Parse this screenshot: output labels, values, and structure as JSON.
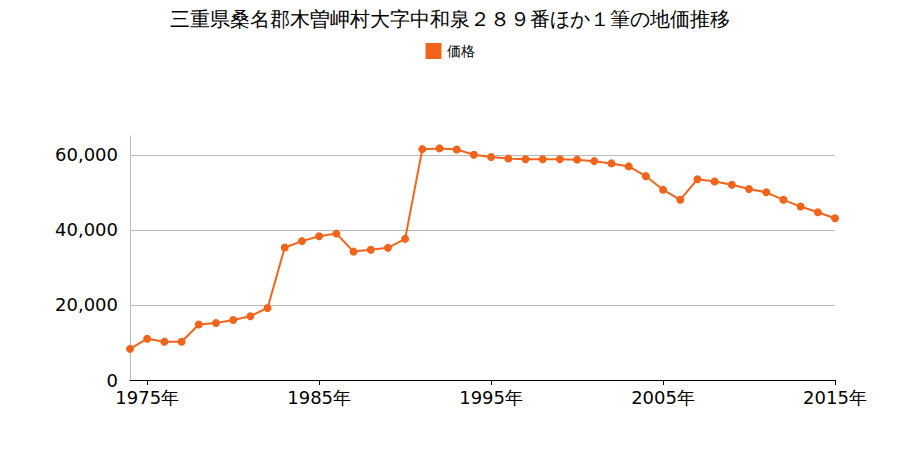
{
  "chart_data": {
    "type": "line",
    "title": "三重県桑名郡木曽岬村大字中和泉２８９番ほか１筆の地価推移",
    "x": [
      1974,
      1975,
      1976,
      1977,
      1978,
      1979,
      1980,
      1981,
      1982,
      1983,
      1984,
      1985,
      1986,
      1987,
      1988,
      1989,
      1990,
      1991,
      1992,
      1993,
      1994,
      1995,
      1996,
      1997,
      1998,
      1999,
      2000,
      2001,
      2002,
      2003,
      2004,
      2005,
      2006,
      2007,
      2008,
      2009,
      2010,
      2011,
      2012,
      2013,
      2014,
      2015
    ],
    "series": [
      {
        "name": "価格",
        "color": "#f2641c",
        "marker": "circle",
        "line_style": "solid",
        "values": [
          8300,
          11000,
          10200,
          10200,
          14800,
          15200,
          16000,
          17000,
          19200,
          35300,
          37000,
          38300,
          39000,
          34200,
          34700,
          35200,
          37600,
          61500,
          61700,
          61400,
          60000,
          59400,
          59000,
          58800,
          58800,
          58800,
          58700,
          58300,
          57700,
          56900,
          54300,
          50700,
          48000,
          53500,
          52900,
          52000,
          50900,
          50000,
          48000,
          46200,
          44700,
          43100
        ]
      }
    ],
    "xlim": [
      1974,
      2015
    ],
    "xticks": [
      {
        "value": 1975,
        "label": "1975年"
      },
      {
        "value": 1985,
        "label": "1985年"
      },
      {
        "value": 1995,
        "label": "1995年"
      },
      {
        "value": 2005,
        "label": "2005年"
      },
      {
        "value": 2015,
        "label": "2015年"
      }
    ],
    "ylim": [
      0,
      65000
    ],
    "yticks": [
      0,
      {
        "value": 20000,
        "label": "20,000"
      },
      {
        "value": 40000,
        "label": "40,000"
      },
      {
        "value": 60000,
        "label": "60,000"
      }
    ],
    "grid": true,
    "legend": "top"
  }
}
